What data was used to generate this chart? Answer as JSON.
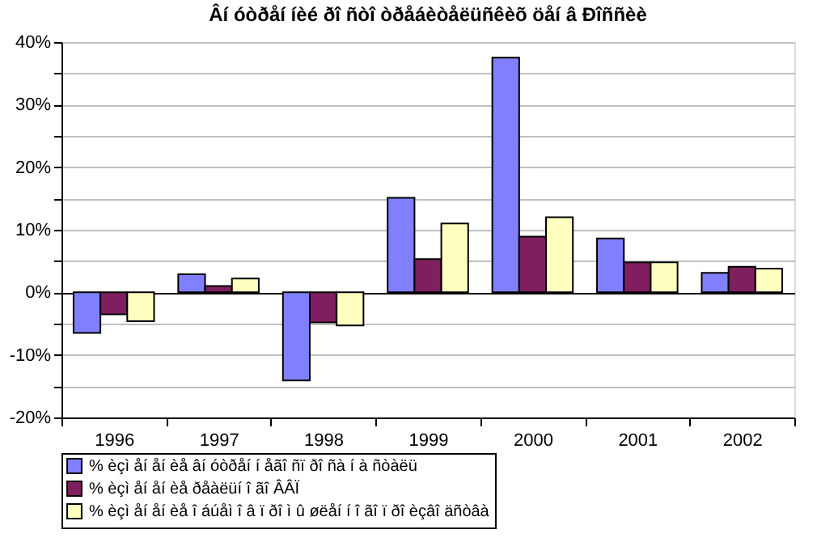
{
  "chart_data": {
    "type": "bar",
    "title": "Âí óòðåí íèé ðî ñòî òðåáèòåëüñêèõ öåí â Ðîññèè",
    "categories": [
      "1996",
      "1997",
      "1998",
      "1999",
      "2000",
      "2001",
      "2002"
    ],
    "series": [
      {
        "name": "% èçì åí åí èå âí óòðåí í åãî ñï ðî ñà í à ñòàëü",
        "color": "#8080ff",
        "values": [
          -6.5,
          2.9,
          -14.1,
          15.1,
          37.5,
          8.6,
          3.1
        ]
      },
      {
        "name": "% èçì åí åí èå ðåàëüí î ãî ÂÂÏ",
        "color": "#801f5f",
        "values": [
          -3.5,
          1.0,
          -4.8,
          5.3,
          8.9,
          4.8,
          4.1
        ]
      },
      {
        "name": "% èçì åí åí èå î áúåì î â ï ðî ì û øëåí í î ãî ï ðî èçâî äñòâà",
        "color": "#ffffc0",
        "values": [
          -4.6,
          2.2,
          -5.3,
          11.0,
          12.0,
          4.8,
          3.8
        ]
      }
    ],
    "ylim": [
      -20,
      40
    ],
    "yticks": [
      {
        "value": -20,
        "label": "-20%"
      },
      {
        "value": -15,
        "label": null
      },
      {
        "value": -10,
        "label": "-10%"
      },
      {
        "value": -5,
        "label": null
      },
      {
        "value": 0,
        "label": "0%"
      },
      {
        "value": 5,
        "label": null
      },
      {
        "value": 10,
        "label": "10%"
      },
      {
        "value": 15,
        "label": null
      },
      {
        "value": 20,
        "label": "20%"
      },
      {
        "value": 25,
        "label": null
      },
      {
        "value": 30,
        "label": "30%"
      },
      {
        "value": 35,
        "label": null
      },
      {
        "value": 40,
        "label": "40%"
      }
    ],
    "grid": "y",
    "legend": "bottom"
  }
}
